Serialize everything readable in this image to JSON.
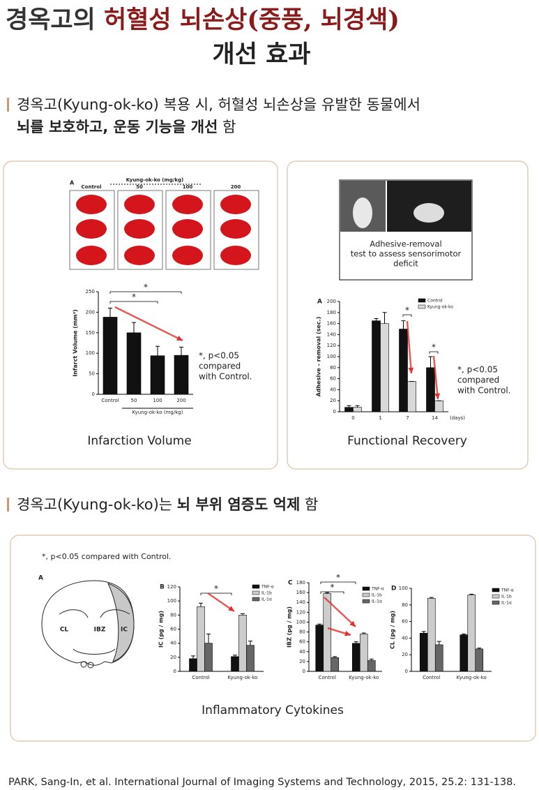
{
  "header": {
    "title_a": "경옥고의",
    "title_b": "허혈성 뇌손상(중풍, 뇌경색)",
    "title_c": "개선 효과"
  },
  "section1": {
    "text": "경옥고(Kyung-ok-ko) 복용 시, 허혈성 뇌손상을 유발한 동물에서",
    "bold": "뇌를 보호하고, 운동 기능을 개선",
    "tail": "함"
  },
  "panel1": {
    "photo": {
      "label": "A",
      "dose_title": "Kyung-ok-ko  (mg/kg)",
      "columns": [
        "Control",
        "50",
        "100",
        "200"
      ]
    },
    "chart": {
      "type": "bar",
      "categories": [
        "Control",
        "50",
        "100",
        "200"
      ],
      "values": [
        188,
        150,
        94,
        95
      ],
      "errors": [
        22,
        25,
        23,
        20
      ],
      "color": "#111111",
      "ylabel": "Infarct Volume (mm³)",
      "xlabel": "Kyung-ok-ko (mg/kg)",
      "ylim": [
        0,
        250
      ],
      "yticks": [
        0,
        50,
        100,
        150,
        200,
        250
      ],
      "stars": [
        "*",
        "*"
      ],
      "note": [
        "*, p<0.05",
        "compared",
        "with Control."
      ]
    },
    "caption": "Infarction Volume"
  },
  "panel2": {
    "photo": {
      "caption": [
        "Adhesive-removal",
        "test to assess sensorimotor",
        "deficit"
      ]
    },
    "chart": {
      "type": "bar",
      "label": "A",
      "categories": [
        "0",
        "1",
        "7",
        "14"
      ],
      "xunit": "(days)",
      "series": [
        {
          "name": "Control",
          "color": "#111111",
          "values": [
            8,
            165,
            150,
            80
          ],
          "errors": [
            3,
            4,
            15,
            20
          ]
        },
        {
          "name": "Kyung-ok-ko",
          "color": "#d8d8d8",
          "values": [
            8,
            160,
            55,
            20
          ],
          "errors": [
            3,
            20,
            0,
            0
          ]
        }
      ],
      "ylabel": "Adhesive - removal (sec.)",
      "ylim": [
        0,
        200
      ],
      "yticks": [
        0,
        20,
        40,
        60,
        80,
        100,
        120,
        140,
        160,
        180,
        200
      ],
      "stars": [
        "*",
        "*"
      ],
      "note": [
        "*, p<0.05",
        "compared",
        "with Control."
      ]
    },
    "caption": "Functional Recovery"
  },
  "section2": {
    "text": "경옥고(Kyung-ok-ko)는",
    "bold": "뇌 부위 염증도 억제",
    "tail": "함"
  },
  "panel3": {
    "note": "*, p<0.05 compared with Control.",
    "diagram": {
      "label": "A",
      "regions": [
        "CL",
        "IBZ",
        "IC"
      ]
    },
    "charts": [
      {
        "type": "bar",
        "label": "B",
        "categories": [
          "Control",
          "Kyung-ok-ko"
        ],
        "ylabel": "IC (pg / mg)",
        "ylim": [
          0,
          120
        ],
        "yticks": [
          0,
          20,
          40,
          60,
          80,
          100,
          120
        ],
        "stars": [
          "*"
        ],
        "series": [
          {
            "name": "TNF-α",
            "color": "#111111",
            "values": [
              18,
              21
            ],
            "errors": [
              4,
              2
            ]
          },
          {
            "name": "IL-1b",
            "color": "#cccccc",
            "values": [
              92,
              80
            ],
            "errors": [
              5,
              2
            ]
          },
          {
            "name": "IL-1α",
            "color": "#666666",
            "values": [
              40,
              37
            ],
            "errors": [
              13,
              6
            ]
          }
        ]
      },
      {
        "type": "bar",
        "label": "C",
        "categories": [
          "Control",
          "Kyung-ok-ko"
        ],
        "ylabel": "IBZ (pg / mg)",
        "ylim": [
          0,
          180
        ],
        "yticks": [
          0,
          20,
          40,
          60,
          80,
          100,
          120,
          140,
          160,
          180
        ],
        "stars": [
          "*",
          "*"
        ],
        "series": [
          {
            "name": "TNF-α",
            "color": "#111111",
            "values": [
              94,
              57
            ],
            "errors": [
              2,
              3
            ]
          },
          {
            "name": "IL-1b",
            "color": "#cccccc",
            "values": [
              158,
              76
            ],
            "errors": [
              2,
              2
            ]
          },
          {
            "name": "IL-1α",
            "color": "#666666",
            "values": [
              28,
              22
            ],
            "errors": [
              2,
              3
            ]
          }
        ]
      },
      {
        "type": "bar",
        "label": "D",
        "categories": [
          "Control",
          "Kyung-ok-ko"
        ],
        "ylabel": "CL (pg / mg)",
        "ylim": [
          0,
          100
        ],
        "yticks": [
          0,
          20,
          40,
          60,
          80,
          100
        ],
        "series": [
          {
            "name": "TNF-α",
            "color": "#111111",
            "values": [
              46,
              44
            ],
            "errors": [
              2,
              1
            ]
          },
          {
            "name": "IL-1b",
            "color": "#cccccc",
            "values": [
              88,
              92
            ],
            "errors": [
              1,
              1
            ]
          },
          {
            "name": "IL-1α",
            "color": "#666666",
            "values": [
              32,
              27
            ],
            "errors": [
              4,
              1
            ]
          }
        ]
      }
    ],
    "caption": "Inflammatory Cytokines"
  },
  "reference": "PARK, Sang-In, et al. International Journal of Imaging Systems and Technology, 2015, 25.2: 131-138."
}
